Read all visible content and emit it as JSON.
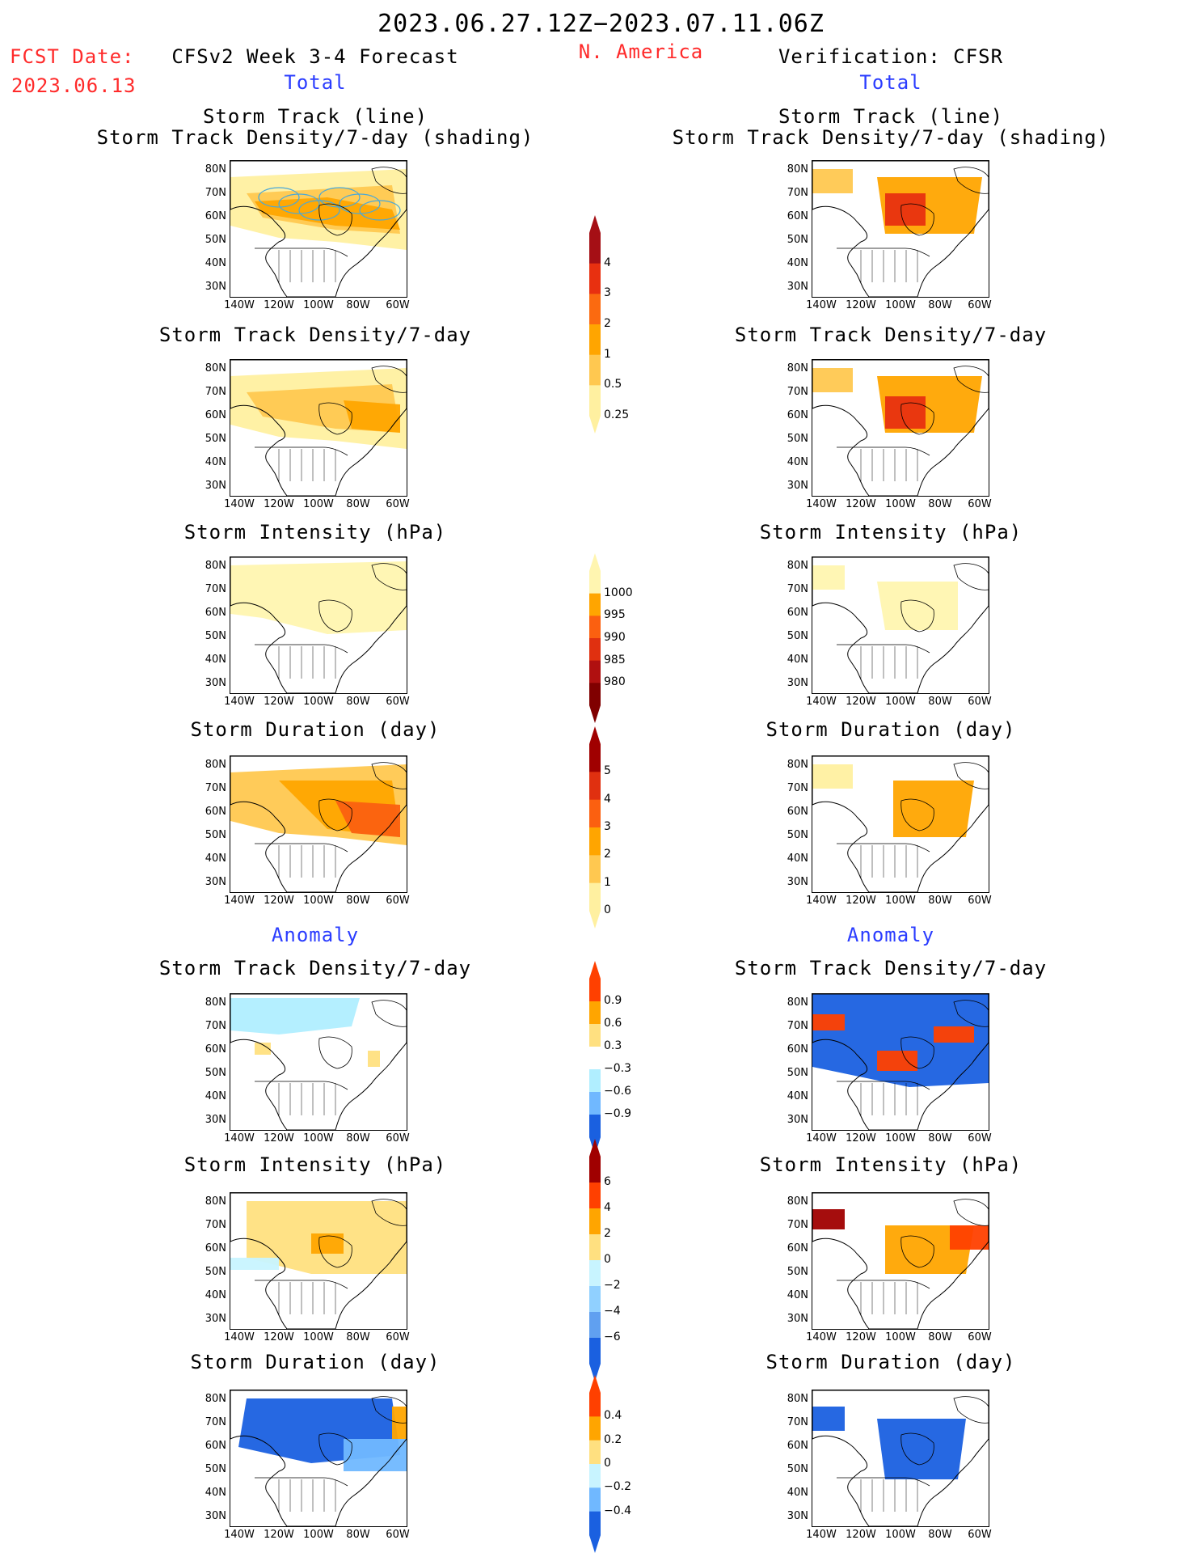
{
  "header": {
    "date_range": "2023.06.27.12Z−2023.07.11.06Z",
    "fcst_label": "FCST Date:",
    "fcst_date": "2023.06.13",
    "model_title": "CFSv2 Week 3-4 Forecast",
    "region": "N. America",
    "verification": "Verification: CFSR"
  },
  "sections": {
    "total_left": "Total",
    "total_right": "Total",
    "anomaly_left": "Anomaly",
    "anomaly_right": "Anomaly"
  },
  "panel_titles": {
    "track_line": "Storm Track (line)",
    "track_density_shading": "Storm Track Density/7-day (shading)",
    "track_density": "Storm Track Density/7-day",
    "intensity": "Storm Intensity (hPa)",
    "duration": "Storm Duration (day)"
  },
  "axes": {
    "lat_labels": [
      "80N",
      "70N",
      "60N",
      "50N",
      "40N",
      "30N"
    ],
    "lon_labels": [
      "140W",
      "120W",
      "100W",
      "80W",
      "60W"
    ]
  },
  "colorbars": [
    {
      "name": "track-density-total",
      "labels": [
        "4",
        "3",
        "2",
        "1",
        "0.5",
        "0.25"
      ],
      "colors": [
        "#a50f15",
        "#e83010",
        "#fb6a10",
        "#ffa500",
        "#ffc850",
        "#fff0a0"
      ]
    },
    {
      "name": "intensity-total",
      "labels": [
        "1000",
        "995",
        "990",
        "985",
        "980"
      ],
      "colors": [
        "#fff5b0",
        "#ffa500",
        "#fb6010",
        "#e03010",
        "#b01010",
        "#800000"
      ]
    },
    {
      "name": "duration-total",
      "labels": [
        "5",
        "4",
        "3",
        "2",
        "1",
        "0"
      ],
      "colors": [
        "#a00000",
        "#e03010",
        "#fb6010",
        "#ffa500",
        "#ffc850",
        "#fff0a0"
      ]
    },
    {
      "name": "track-density-anomaly",
      "labels": [
        "0.9",
        "0.6",
        "0.3",
        "−0.3",
        "−0.6",
        "−0.9"
      ],
      "colors": [
        "#ff4000",
        "#ffa500",
        "#ffe080",
        "#ffffff",
        "#b0eeff",
        "#70b8ff",
        "#1a60e0"
      ]
    },
    {
      "name": "intensity-anomaly",
      "labels": [
        "6",
        "4",
        "2",
        "0",
        "−2",
        "−4",
        "−6"
      ],
      "colors": [
        "#a00000",
        "#ff4000",
        "#ffa500",
        "#ffe080",
        "#c8f4ff",
        "#90d0ff",
        "#60a0f0",
        "#1a60e0"
      ]
    },
    {
      "name": "duration-anomaly",
      "labels": [
        "0.4",
        "0.2",
        "0",
        "−0.2",
        "−0.4"
      ],
      "colors": [
        "#ff4000",
        "#ffa500",
        "#ffe080",
        "#c8f4ff",
        "#70b8ff",
        "#1a60e0"
      ]
    }
  ],
  "colors": {
    "title_red": "#ff2a2a",
    "section_blue": "#2a3cff",
    "storm_track_line": "#4aa8d8"
  }
}
